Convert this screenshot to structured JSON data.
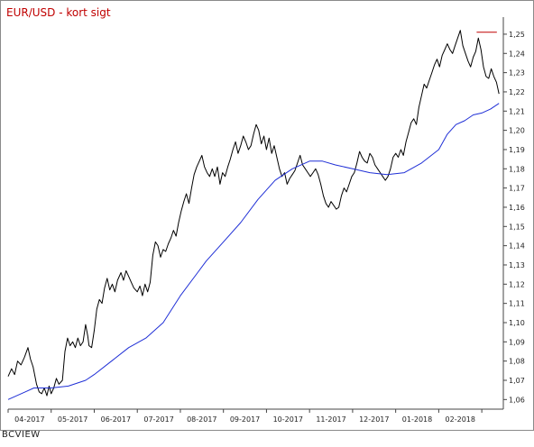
{
  "chart_data": {
    "type": "line",
    "title": "EUR/USD - kort sigt",
    "footer": "BCVIEW",
    "grid": false,
    "ylim": [
      1.055,
      1.257
    ],
    "y_ticks": [
      "1,06",
      "1,07",
      "1,08",
      "1,09",
      "1,10",
      "1,11",
      "1,12",
      "1,13",
      "1,14",
      "1,15",
      "1,16",
      "1,17",
      "1,18",
      "1,19",
      "1,20",
      "1,21",
      "1,22",
      "1,23",
      "1,24",
      "1,25"
    ],
    "x_ticks": [
      "04-2017",
      "05-2017",
      "06-2017",
      "07-2017",
      "08-2017",
      "09-2017",
      "10-2017",
      "11-2017",
      "12-2017",
      "01-2018",
      "02-2018"
    ],
    "resistance": {
      "level": 1.251,
      "from_month": 10.88,
      "to_month": 11.35
    },
    "series": [
      {
        "key": "price",
        "color": "#000000",
        "points": [
          [
            0.0,
            1.072
          ],
          [
            0.08,
            1.076
          ],
          [
            0.15,
            1.073
          ],
          [
            0.22,
            1.08
          ],
          [
            0.3,
            1.078
          ],
          [
            0.38,
            1.082
          ],
          [
            0.46,
            1.087
          ],
          [
            0.52,
            1.081
          ],
          [
            0.58,
            1.077
          ],
          [
            0.66,
            1.068
          ],
          [
            0.72,
            1.064
          ],
          [
            0.78,
            1.063
          ],
          [
            0.84,
            1.066
          ],
          [
            0.9,
            1.062
          ],
          [
            0.95,
            1.067
          ],
          [
            1.0,
            1.063
          ],
          [
            1.06,
            1.066
          ],
          [
            1.12,
            1.071
          ],
          [
            1.18,
            1.068
          ],
          [
            1.26,
            1.07
          ],
          [
            1.32,
            1.085
          ],
          [
            1.38,
            1.092
          ],
          [
            1.44,
            1.088
          ],
          [
            1.5,
            1.09
          ],
          [
            1.56,
            1.087
          ],
          [
            1.62,
            1.092
          ],
          [
            1.68,
            1.088
          ],
          [
            1.74,
            1.09
          ],
          [
            1.8,
            1.099
          ],
          [
            1.85,
            1.093
          ],
          [
            1.88,
            1.088
          ],
          [
            1.94,
            1.087
          ],
          [
            2.0,
            1.096
          ],
          [
            2.06,
            1.107
          ],
          [
            2.12,
            1.112
          ],
          [
            2.18,
            1.11
          ],
          [
            2.24,
            1.118
          ],
          [
            2.3,
            1.123
          ],
          [
            2.36,
            1.117
          ],
          [
            2.42,
            1.12
          ],
          [
            2.48,
            1.116
          ],
          [
            2.54,
            1.122
          ],
          [
            2.62,
            1.126
          ],
          [
            2.68,
            1.122
          ],
          [
            2.74,
            1.127
          ],
          [
            2.8,
            1.124
          ],
          [
            2.86,
            1.121
          ],
          [
            2.92,
            1.118
          ],
          [
            3.0,
            1.116
          ],
          [
            3.06,
            1.119
          ],
          [
            3.12,
            1.114
          ],
          [
            3.18,
            1.12
          ],
          [
            3.24,
            1.116
          ],
          [
            3.3,
            1.121
          ],
          [
            3.36,
            1.135
          ],
          [
            3.42,
            1.142
          ],
          [
            3.48,
            1.14
          ],
          [
            3.54,
            1.134
          ],
          [
            3.6,
            1.138
          ],
          [
            3.66,
            1.137
          ],
          [
            3.72,
            1.141
          ],
          [
            3.78,
            1.144
          ],
          [
            3.84,
            1.148
          ],
          [
            3.9,
            1.145
          ],
          [
            3.96,
            1.152
          ],
          [
            4.02,
            1.158
          ],
          [
            4.08,
            1.163
          ],
          [
            4.14,
            1.167
          ],
          [
            4.2,
            1.162
          ],
          [
            4.26,
            1.17
          ],
          [
            4.32,
            1.177
          ],
          [
            4.38,
            1.181
          ],
          [
            4.44,
            1.184
          ],
          [
            4.5,
            1.187
          ],
          [
            4.56,
            1.181
          ],
          [
            4.62,
            1.178
          ],
          [
            4.68,
            1.176
          ],
          [
            4.74,
            1.18
          ],
          [
            4.8,
            1.176
          ],
          [
            4.86,
            1.181
          ],
          [
            4.92,
            1.172
          ],
          [
            4.98,
            1.178
          ],
          [
            5.04,
            1.176
          ],
          [
            5.1,
            1.181
          ],
          [
            5.16,
            1.185
          ],
          [
            5.22,
            1.19
          ],
          [
            5.28,
            1.194
          ],
          [
            5.34,
            1.188
          ],
          [
            5.4,
            1.192
          ],
          [
            5.46,
            1.197
          ],
          [
            5.52,
            1.194
          ],
          [
            5.58,
            1.19
          ],
          [
            5.64,
            1.192
          ],
          [
            5.7,
            1.198
          ],
          [
            5.76,
            1.203
          ],
          [
            5.82,
            1.2
          ],
          [
            5.88,
            1.193
          ],
          [
            5.94,
            1.197
          ],
          [
            6.0,
            1.19
          ],
          [
            6.06,
            1.196
          ],
          [
            6.12,
            1.188
          ],
          [
            6.18,
            1.192
          ],
          [
            6.24,
            1.186
          ],
          [
            6.3,
            1.18
          ],
          [
            6.36,
            1.176
          ],
          [
            6.42,
            1.178
          ],
          [
            6.48,
            1.172
          ],
          [
            6.54,
            1.175
          ],
          [
            6.6,
            1.177
          ],
          [
            6.66,
            1.179
          ],
          [
            6.72,
            1.183
          ],
          [
            6.78,
            1.187
          ],
          [
            6.84,
            1.182
          ],
          [
            6.9,
            1.18
          ],
          [
            6.96,
            1.178
          ],
          [
            7.02,
            1.176
          ],
          [
            7.08,
            1.178
          ],
          [
            7.14,
            1.18
          ],
          [
            7.2,
            1.177
          ],
          [
            7.26,
            1.172
          ],
          [
            7.32,
            1.166
          ],
          [
            7.38,
            1.162
          ],
          [
            7.44,
            1.16
          ],
          [
            7.5,
            1.163
          ],
          [
            7.56,
            1.161
          ],
          [
            7.62,
            1.159
          ],
          [
            7.68,
            1.16
          ],
          [
            7.74,
            1.166
          ],
          [
            7.8,
            1.17
          ],
          [
            7.86,
            1.168
          ],
          [
            7.92,
            1.172
          ],
          [
            7.98,
            1.176
          ],
          [
            8.04,
            1.178
          ],
          [
            8.1,
            1.183
          ],
          [
            8.16,
            1.189
          ],
          [
            8.22,
            1.186
          ],
          [
            8.28,
            1.184
          ],
          [
            8.34,
            1.183
          ],
          [
            8.4,
            1.188
          ],
          [
            8.46,
            1.186
          ],
          [
            8.52,
            1.182
          ],
          [
            8.58,
            1.18
          ],
          [
            8.64,
            1.178
          ],
          [
            8.7,
            1.176
          ],
          [
            8.76,
            1.174
          ],
          [
            8.82,
            1.176
          ],
          [
            8.88,
            1.18
          ],
          [
            8.94,
            1.186
          ],
          [
            9.0,
            1.188
          ],
          [
            9.06,
            1.186
          ],
          [
            9.12,
            1.19
          ],
          [
            9.18,
            1.187
          ],
          [
            9.24,
            1.194
          ],
          [
            9.3,
            1.199
          ],
          [
            9.36,
            1.204
          ],
          [
            9.42,
            1.206
          ],
          [
            9.48,
            1.203
          ],
          [
            9.54,
            1.212
          ],
          [
            9.6,
            1.218
          ],
          [
            9.66,
            1.224
          ],
          [
            9.72,
            1.222
          ],
          [
            9.78,
            1.226
          ],
          [
            9.84,
            1.23
          ],
          [
            9.9,
            1.234
          ],
          [
            9.96,
            1.237
          ],
          [
            10.02,
            1.233
          ],
          [
            10.08,
            1.239
          ],
          [
            10.14,
            1.242
          ],
          [
            10.2,
            1.245
          ],
          [
            10.26,
            1.242
          ],
          [
            10.32,
            1.24
          ],
          [
            10.38,
            1.244
          ],
          [
            10.44,
            1.248
          ],
          [
            10.5,
            1.252
          ],
          [
            10.56,
            1.244
          ],
          [
            10.62,
            1.24
          ],
          [
            10.68,
            1.236
          ],
          [
            10.74,
            1.233
          ],
          [
            10.8,
            1.238
          ],
          [
            10.86,
            1.241
          ],
          [
            10.92,
            1.248
          ],
          [
            10.98,
            1.242
          ],
          [
            11.04,
            1.233
          ],
          [
            11.1,
            1.228
          ],
          [
            11.16,
            1.227
          ],
          [
            11.22,
            1.232
          ],
          [
            11.28,
            1.228
          ],
          [
            11.34,
            1.225
          ],
          [
            11.4,
            1.219
          ]
        ]
      },
      {
        "key": "moving-average",
        "color": "#1f2fd6",
        "points": [
          [
            0.0,
            1.06
          ],
          [
            0.4,
            1.064
          ],
          [
            0.6,
            1.066
          ],
          [
            1.0,
            1.066
          ],
          [
            1.4,
            1.067
          ],
          [
            1.8,
            1.07
          ],
          [
            2.0,
            1.073
          ],
          [
            2.4,
            1.08
          ],
          [
            2.8,
            1.087
          ],
          [
            3.2,
            1.092
          ],
          [
            3.6,
            1.1
          ],
          [
            4.0,
            1.114
          ],
          [
            4.4,
            1.126
          ],
          [
            4.6,
            1.132
          ],
          [
            5.0,
            1.142
          ],
          [
            5.4,
            1.152
          ],
          [
            5.8,
            1.164
          ],
          [
            6.2,
            1.174
          ],
          [
            6.6,
            1.18
          ],
          [
            7.0,
            1.184
          ],
          [
            7.3,
            1.184
          ],
          [
            7.6,
            1.182
          ],
          [
            8.0,
            1.18
          ],
          [
            8.4,
            1.178
          ],
          [
            8.8,
            1.177
          ],
          [
            9.2,
            1.178
          ],
          [
            9.6,
            1.183
          ],
          [
            10.0,
            1.19
          ],
          [
            10.2,
            1.198
          ],
          [
            10.4,
            1.203
          ],
          [
            10.6,
            1.205
          ],
          [
            10.8,
            1.208
          ],
          [
            11.0,
            1.209
          ],
          [
            11.2,
            1.211
          ],
          [
            11.4,
            1.214
          ]
        ]
      }
    ]
  }
}
